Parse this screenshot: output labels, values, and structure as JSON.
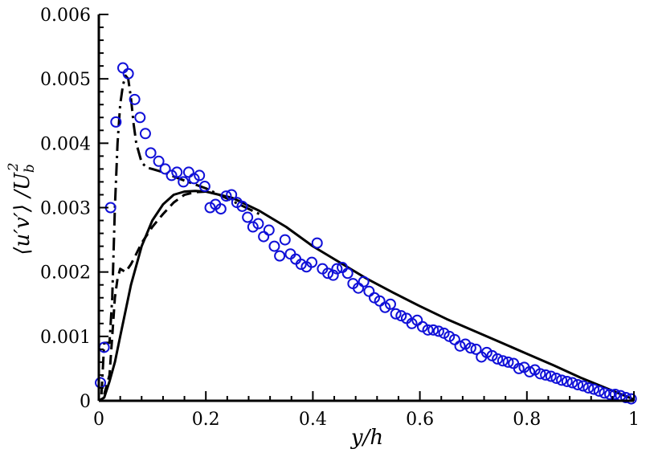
{
  "chart_data": {
    "type": "line",
    "xlabel": "y/h",
    "ylabel": "⟨u′v′⟩ /U",
    "ylabel_sup": "2",
    "ylabel_sub": "b",
    "xlim": [
      0,
      1
    ],
    "ylim": [
      0,
      0.006
    ],
    "x_ticks": [
      0,
      0.2,
      0.4,
      0.6,
      0.8,
      1
    ],
    "x_tick_labels": [
      "0",
      "0.2",
      "0.4",
      "0.6",
      "0.8",
      "1"
    ],
    "y_ticks": [
      0,
      0.001,
      0.002,
      0.003,
      0.004,
      0.005,
      0.006
    ],
    "y_tick_labels": [
      "0",
      "0.001",
      "0.002",
      "0.003",
      "0.004",
      "0.005",
      "0.006"
    ],
    "grid": false,
    "colors": {
      "markers": "#1010d8",
      "lines": "#000000"
    },
    "series": [
      {
        "style": "solid",
        "x": [
          0,
          0.01,
          0.02,
          0.03,
          0.04,
          0.05,
          0.06,
          0.08,
          0.1,
          0.12,
          0.14,
          0.16,
          0.18,
          0.2,
          0.25,
          0.3,
          0.35,
          0.4,
          0.45,
          0.5,
          0.55,
          0.6,
          0.65,
          0.7,
          0.75,
          0.8,
          0.85,
          0.9,
          0.95,
          1.0
        ],
        "y": [
          0,
          5e-05,
          0.0003,
          0.0006,
          0.001,
          0.0014,
          0.0018,
          0.0024,
          0.0028,
          0.00305,
          0.0032,
          0.00325,
          0.00326,
          0.00325,
          0.00315,
          0.00295,
          0.0027,
          0.0024,
          0.00215,
          0.0019,
          0.00168,
          0.00147,
          0.00127,
          0.00109,
          0.00091,
          0.00073,
          0.00055,
          0.00036,
          0.00019,
          2e-05
        ]
      },
      {
        "style": "dashed",
        "x": [
          0.01,
          0.02,
          0.025,
          0.03,
          0.035,
          0.04,
          0.05,
          0.06,
          0.07,
          0.08,
          0.1,
          0.12,
          0.14,
          0.16,
          0.18,
          0.2
        ],
        "y": [
          0.0001,
          0.0004,
          0.001,
          0.0016,
          0.0019,
          0.00205,
          0.002,
          0.00212,
          0.00228,
          0.00245,
          0.0027,
          0.0029,
          0.00308,
          0.0032,
          0.00324,
          0.00325
        ]
      },
      {
        "style": "dashdot",
        "x": [
          0.005,
          0.01,
          0.015,
          0.02,
          0.025,
          0.03,
          0.035,
          0.04,
          0.045,
          0.05,
          0.055,
          0.06,
          0.065,
          0.07,
          0.08,
          0.09,
          0.1,
          0.12,
          0.15,
          0.2,
          0.25,
          0.3
        ],
        "y": [
          0.0001,
          0.0009,
          0.0009,
          0.0009,
          0.0016,
          0.003,
          0.004,
          0.0046,
          0.0049,
          0.00505,
          0.005,
          0.0047,
          0.0043,
          0.004,
          0.0037,
          0.00362,
          0.0036,
          0.00355,
          0.00345,
          0.0033,
          0.0031,
          0.0029
        ]
      },
      {
        "style": "markers",
        "marker": "open-circle",
        "x": [
          0.003,
          0.01,
          0.022,
          0.032,
          0.045,
          0.055,
          0.067,
          0.077,
          0.087,
          0.097,
          0.112,
          0.124,
          0.136,
          0.146,
          0.158,
          0.168,
          0.178,
          0.188,
          0.198,
          0.208,
          0.218,
          0.228,
          0.238,
          0.248,
          0.258,
          0.268,
          0.278,
          0.288,
          0.298,
          0.308,
          0.318,
          0.328,
          0.338,
          0.348,
          0.358,
          0.368,
          0.378,
          0.388,
          0.398,
          0.408,
          0.418,
          0.428,
          0.438,
          0.445,
          0.455,
          0.465,
          0.475,
          0.485,
          0.495,
          0.505,
          0.515,
          0.525,
          0.535,
          0.545,
          0.555,
          0.565,
          0.575,
          0.585,
          0.595,
          0.605,
          0.615,
          0.625,
          0.635,
          0.645,
          0.655,
          0.665,
          0.675,
          0.685,
          0.695,
          0.705,
          0.715,
          0.725,
          0.735,
          0.745,
          0.755,
          0.765,
          0.775,
          0.785,
          0.795,
          0.805,
          0.815,
          0.825,
          0.835,
          0.845,
          0.855,
          0.865,
          0.875,
          0.885,
          0.895,
          0.905,
          0.915,
          0.925,
          0.935,
          0.945,
          0.955,
          0.965,
          0.975,
          0.985,
          0.995
        ],
        "y": [
          0.00028,
          0.00083,
          0.003,
          0.00433,
          0.00517,
          0.00508,
          0.00468,
          0.0044,
          0.00415,
          0.00385,
          0.00372,
          0.0036,
          0.0035,
          0.00355,
          0.0034,
          0.00355,
          0.00345,
          0.0035,
          0.00333,
          0.003,
          0.00305,
          0.00298,
          0.00318,
          0.0032,
          0.00308,
          0.00302,
          0.00285,
          0.0027,
          0.00275,
          0.00255,
          0.00265,
          0.0024,
          0.00225,
          0.0025,
          0.00228,
          0.0022,
          0.00212,
          0.00208,
          0.00215,
          0.00245,
          0.00205,
          0.00198,
          0.00195,
          0.00205,
          0.00207,
          0.00198,
          0.00182,
          0.00175,
          0.00185,
          0.0017,
          0.0016,
          0.00155,
          0.00145,
          0.0015,
          0.00135,
          0.00132,
          0.00128,
          0.0012,
          0.00125,
          0.00115,
          0.0011,
          0.0011,
          0.00108,
          0.00105,
          0.001,
          0.00095,
          0.00085,
          0.00088,
          0.00082,
          0.0008,
          0.00068,
          0.00075,
          0.0007,
          0.00065,
          0.00062,
          0.0006,
          0.00058,
          0.0005,
          0.00052,
          0.00045,
          0.00048,
          0.00042,
          0.0004,
          0.00038,
          0.00035,
          0.00032,
          0.0003,
          0.00028,
          0.00025,
          0.00023,
          0.0002,
          0.00018,
          0.00015,
          0.00012,
          0.0001,
          0.0001,
          8e-05,
          5e-05,
          3e-05
        ]
      }
    ]
  }
}
